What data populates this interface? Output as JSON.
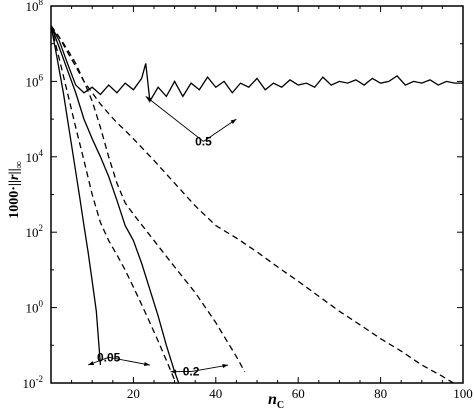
{
  "chart_data": {
    "type": "line",
    "title": "",
    "xlabel": "n",
    "xlabel_sub": "C",
    "ylabel_prefix": "1000·",
    "ylabel_var": "r",
    "ylabel_sub": "∞",
    "xlim": [
      0,
      100
    ],
    "ylim": [
      0.01,
      100000000
    ],
    "yscale": "log",
    "xticks": [
      20,
      40,
      60,
      80,
      100
    ],
    "xtick_labels": [
      "20",
      "40",
      "60",
      "80",
      "100"
    ],
    "yticks": [
      0.01,
      1,
      100,
      10000,
      1000000,
      100000000
    ],
    "ytick_labels": [
      {
        "base": "10",
        "exp": "-2"
      },
      {
        "base": "10",
        "exp": "0"
      },
      {
        "base": "10",
        "exp": "2"
      },
      {
        "base": "10",
        "exp": "4"
      },
      {
        "base": "10",
        "exp": "6"
      },
      {
        "base": "10",
        "exp": "8"
      }
    ],
    "grid": false,
    "series": [
      {
        "style": "solid",
        "x": [
          0,
          1,
          2,
          3,
          4,
          5,
          6,
          7,
          8,
          9,
          10,
          11,
          12
        ],
        "y": [
          30000000,
          8000000,
          2000000,
          500000,
          100000,
          20000,
          4000,
          800,
          150,
          30,
          5,
          0.8,
          0.03
        ]
      },
      {
        "style": "dashed",
        "x": [
          0,
          2,
          4,
          6,
          8,
          10,
          12,
          14,
          16,
          18,
          20,
          22,
          24,
          26,
          28,
          30
        ],
        "y": [
          30000000,
          4000000,
          500000,
          60000,
          8000,
          1000,
          180,
          60,
          25,
          10,
          3.5,
          1.2,
          0.4,
          0.13,
          0.04,
          0.012
        ]
      },
      {
        "style": "solid",
        "x": [
          0,
          2,
          4,
          6,
          8,
          10,
          12,
          14,
          16,
          18,
          20,
          22,
          24,
          26,
          28,
          30,
          31
        ],
        "y": [
          30000000,
          8000000,
          2000000,
          500000,
          100000,
          30000,
          10000,
          3000,
          700,
          150,
          60,
          15,
          3,
          0.6,
          0.1,
          0.02,
          0.01
        ]
      },
      {
        "style": "dashed",
        "x": [
          0,
          2,
          4,
          6,
          8,
          10,
          12,
          14,
          16,
          18,
          20,
          25,
          30,
          35,
          40,
          45,
          47
        ],
        "y": [
          30000000,
          15000000,
          7000000,
          3000000,
          1000000,
          300000,
          60000,
          10000,
          2000,
          600,
          300,
          60,
          12,
          2.5,
          0.4,
          0.05,
          0.02
        ]
      },
      {
        "style": "solid",
        "x": [
          0,
          2,
          4,
          6,
          8,
          10,
          12,
          14,
          16,
          18,
          20,
          22,
          23,
          24,
          26,
          28,
          30,
          32,
          34,
          36,
          38,
          40,
          42,
          44,
          46,
          48,
          50,
          52,
          54,
          56,
          58,
          60,
          62,
          64,
          66,
          68,
          70,
          72,
          74,
          76,
          78,
          80,
          82,
          84,
          86,
          88,
          90,
          92,
          94,
          96,
          98,
          100
        ],
        "y": [
          30000000,
          12000000,
          3000000,
          800000,
          500000,
          700000,
          450000,
          800000,
          500000,
          900000,
          600000,
          1200000,
          3000000,
          300000,
          700000,
          400000,
          1000000,
          400000,
          900000,
          600000,
          1300000,
          700000,
          1000000,
          500000,
          900000,
          700000,
          1200000,
          600000,
          900000,
          700000,
          1100000,
          800000,
          900000,
          700000,
          1300000,
          800000,
          1000000,
          900000,
          1100000,
          800000,
          1200000,
          900000,
          1000000,
          1400000,
          800000,
          1000000,
          900000,
          1100000,
          800000,
          1000000,
          900000,
          900000
        ]
      },
      {
        "style": "dashed",
        "x": [
          0,
          2,
          4,
          6,
          8,
          10,
          12,
          14,
          16,
          18,
          20,
          25,
          30,
          35,
          40,
          45,
          50,
          55,
          60,
          65,
          70,
          75,
          80,
          85,
          90,
          95,
          100
        ],
        "y": [
          30000000,
          15000000,
          6000000,
          2500000,
          1000000,
          500000,
          250000,
          140000,
          80000,
          50000,
          30000,
          8000,
          2000,
          500,
          150,
          70,
          30,
          12,
          5,
          2,
          0.8,
          0.35,
          0.15,
          0.07,
          0.03,
          0.015,
          0.007
        ]
      }
    ],
    "annotations": [
      {
        "text": "0.5",
        "at": [
          37,
          20000
        ],
        "points_to": [
          [
            23,
            400000
          ],
          [
            45,
            100000
          ]
        ]
      },
      {
        "text": "0.05",
        "at": [
          14,
          0.0375
        ],
        "points_to": [
          [
            9,
            0.03
          ],
          [
            24,
            0.03
          ]
        ]
      },
      {
        "text": "0.2",
        "at": [
          34,
          0.0158
        ],
        "points_to": [
          [
            29,
            0.02
          ],
          [
            43,
            0.03
          ]
        ]
      }
    ]
  }
}
